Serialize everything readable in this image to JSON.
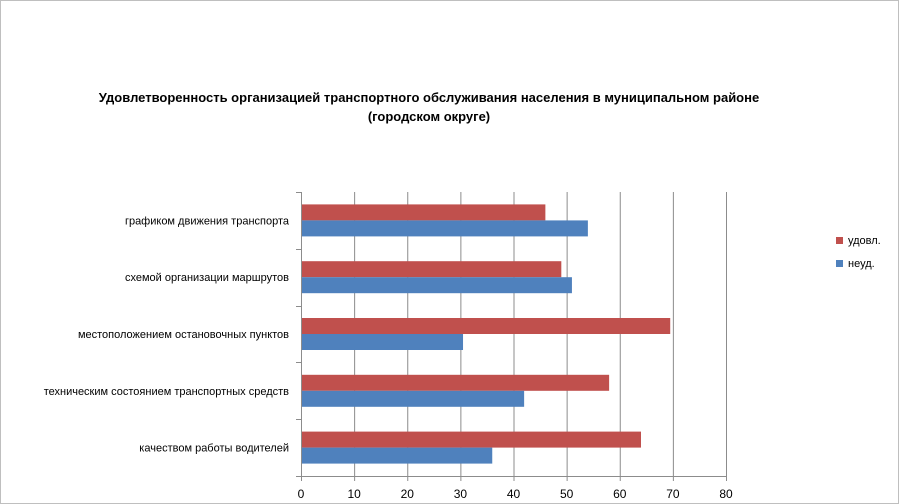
{
  "chart_data": {
    "type": "bar",
    "orientation": "horizontal",
    "title": [
      "Удовлетворенность организацией транспортного обслуживания населения в муниципальном районе",
      "(городском округе)"
    ],
    "categories": [
      "графиком движения транспорта",
      "схемой организации маршрутов",
      "местоположением остановочных пунктов",
      "техническим состоянием транспортных средств",
      "качеством работы водителей"
    ],
    "series": [
      {
        "name": "удовл.",
        "color": "#c0504d",
        "values": [
          46,
          49,
          69.5,
          58,
          64
        ]
      },
      {
        "name": "неуд.",
        "color": "#4f81bd",
        "values": [
          54,
          51,
          30.5,
          42,
          36
        ]
      }
    ],
    "xlim": [
      0,
      80
    ],
    "xticks": [
      0,
      10,
      20,
      30,
      40,
      50,
      60,
      70,
      80
    ],
    "grid": true,
    "legend": "right",
    "xlabel": "",
    "ylabel": ""
  }
}
